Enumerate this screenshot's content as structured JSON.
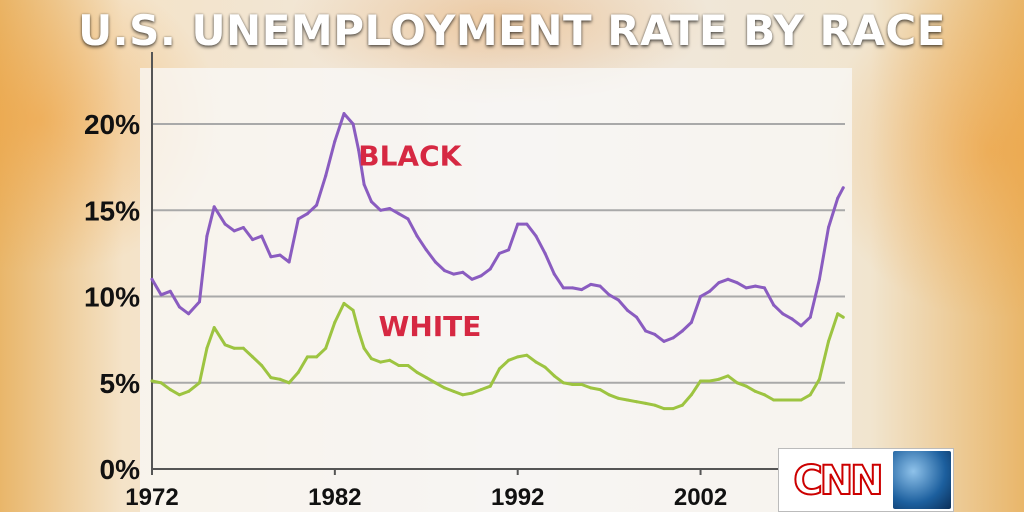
{
  "title": "U.S. UNEMPLOYMENT RATE BY RACE",
  "broadcaster": "CNN",
  "colors": {
    "black_series": "#8a5cc0",
    "white_series": "#9dc441",
    "label": "#d62842"
  },
  "chart_data": {
    "type": "line",
    "title": "U.S. UNEMPLOYMENT RATE BY RACE",
    "xlabel": "",
    "ylabel": "",
    "x_ticks": [
      "1972",
      "1982",
      "1992",
      "2002"
    ],
    "y_ticks": [
      "0%",
      "5%",
      "10%",
      "15%",
      "20%"
    ],
    "xlim": [
      1972,
      2009.9
    ],
    "ylim": [
      0,
      20
    ],
    "grid": true,
    "series": [
      {
        "name": "BLACK",
        "x": [
          1972.0,
          1972.5,
          1973.0,
          1973.5,
          1974.0,
          1974.6,
          1975.0,
          1975.4,
          1976.0,
          1976.5,
          1977.0,
          1977.5,
          1978.0,
          1978.5,
          1979.0,
          1979.5,
          1980.0,
          1980.5,
          1981.0,
          1981.5,
          1982.0,
          1982.5,
          1983.0,
          1983.3,
          1983.6,
          1984.0,
          1984.5,
          1985.0,
          1985.5,
          1986.0,
          1986.5,
          1987.0,
          1987.5,
          1988.0,
          1988.5,
          1989.0,
          1989.5,
          1990.0,
          1990.5,
          1991.0,
          1991.5,
          1992.0,
          1992.5,
          1993.0,
          1993.5,
          1994.0,
          1994.5,
          1995.0,
          1995.5,
          1996.0,
          1996.5,
          1997.0,
          1997.5,
          1998.0,
          1998.5,
          1999.0,
          1999.5,
          2000.0,
          2000.5,
          2001.0,
          2001.5,
          2002.0,
          2002.5,
          2003.0,
          2003.5,
          2004.0,
          2004.5,
          2005.0,
          2005.5,
          2006.0,
          2006.5,
          2007.0,
          2007.5,
          2008.0,
          2008.5,
          2009.0,
          2009.5,
          2009.8
        ],
        "values": [
          11.0,
          10.1,
          10.3,
          9.4,
          9.0,
          9.7,
          13.5,
          15.2,
          14.2,
          13.8,
          14.0,
          13.3,
          13.5,
          12.3,
          12.4,
          12.0,
          14.5,
          14.8,
          15.3,
          17.0,
          19.0,
          20.6,
          20.0,
          18.5,
          16.5,
          15.5,
          15.0,
          15.1,
          14.8,
          14.5,
          13.5,
          12.7,
          12.0,
          11.5,
          11.3,
          11.4,
          11.0,
          11.2,
          11.6,
          12.5,
          12.7,
          14.2,
          14.2,
          13.5,
          12.5,
          11.3,
          10.5,
          10.5,
          10.4,
          10.7,
          10.6,
          10.1,
          9.8,
          9.2,
          8.8,
          8.0,
          7.8,
          7.4,
          7.6,
          8.0,
          8.5,
          10.0,
          10.3,
          10.8,
          11.0,
          10.8,
          10.5,
          10.6,
          10.5,
          9.5,
          9.0,
          8.7,
          8.3,
          8.8,
          11.0,
          14.0,
          15.7,
          16.3
        ]
      },
      {
        "name": "WHITE",
        "x": [
          1972.0,
          1972.5,
          1973.0,
          1973.5,
          1974.0,
          1974.6,
          1975.0,
          1975.4,
          1976.0,
          1976.5,
          1977.0,
          1977.5,
          1978.0,
          1978.5,
          1979.0,
          1979.5,
          1980.0,
          1980.5,
          1981.0,
          1981.5,
          1982.0,
          1982.5,
          1983.0,
          1983.3,
          1983.6,
          1984.0,
          1984.5,
          1985.0,
          1985.5,
          1986.0,
          1986.5,
          1987.0,
          1987.5,
          1988.0,
          1988.5,
          1989.0,
          1989.5,
          1990.0,
          1990.5,
          1991.0,
          1991.5,
          1992.0,
          1992.5,
          1993.0,
          1993.5,
          1994.0,
          1994.5,
          1995.0,
          1995.5,
          1996.0,
          1996.5,
          1997.0,
          1997.5,
          1998.0,
          1998.5,
          1999.0,
          1999.5,
          2000.0,
          2000.5,
          2001.0,
          2001.5,
          2002.0,
          2002.5,
          2003.0,
          2003.5,
          2004.0,
          2004.5,
          2005.0,
          2005.5,
          2006.0,
          2006.5,
          2007.0,
          2007.5,
          2008.0,
          2008.5,
          2009.0,
          2009.5,
          2009.8
        ],
        "values": [
          5.1,
          5.0,
          4.6,
          4.3,
          4.5,
          5.0,
          7.0,
          8.2,
          7.2,
          7.0,
          7.0,
          6.5,
          6.0,
          5.3,
          5.2,
          5.0,
          5.6,
          6.5,
          6.5,
          7.0,
          8.5,
          9.6,
          9.2,
          8.0,
          7.0,
          6.4,
          6.2,
          6.3,
          6.0,
          6.0,
          5.6,
          5.3,
          5.0,
          4.7,
          4.5,
          4.3,
          4.4,
          4.6,
          4.8,
          5.8,
          6.3,
          6.5,
          6.6,
          6.2,
          5.9,
          5.4,
          5.0,
          4.9,
          4.9,
          4.7,
          4.6,
          4.3,
          4.1,
          4.0,
          3.9,
          3.8,
          3.7,
          3.5,
          3.5,
          3.7,
          4.3,
          5.1,
          5.1,
          5.2,
          5.4,
          5.0,
          4.8,
          4.5,
          4.3,
          4.0,
          4.0,
          4.0,
          4.0,
          4.3,
          5.2,
          7.4,
          9.0,
          8.8
        ]
      }
    ],
    "annotations": [
      "BLACK",
      "WHITE"
    ]
  }
}
